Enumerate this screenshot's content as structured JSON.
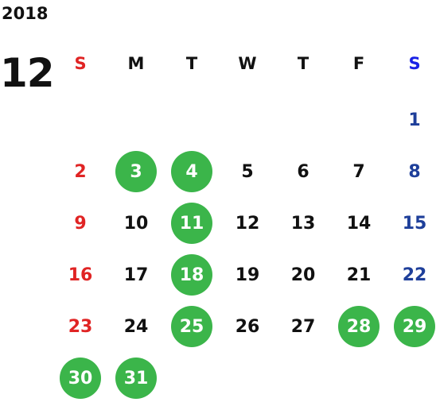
{
  "year": "2018",
  "month": "12",
  "colors": {
    "sunday": "#e02424",
    "saturday": "#1e3f9a",
    "saturday_header": "#1a22e6",
    "weekday": "#111111",
    "highlight_bg": "#3bb54a",
    "highlight_text": "#ffffff"
  },
  "weekdays": [
    "S",
    "M",
    "T",
    "W",
    "T",
    "F",
    "S"
  ],
  "weeks": [
    [
      null,
      null,
      null,
      null,
      null,
      null,
      "1"
    ],
    [
      "2",
      "3",
      "4",
      "5",
      "6",
      "7",
      "8"
    ],
    [
      "9",
      "10",
      "11",
      "12",
      "13",
      "14",
      "15"
    ],
    [
      "16",
      "17",
      "18",
      "19",
      "20",
      "21",
      "22"
    ],
    [
      "23",
      "24",
      "25",
      "26",
      "27",
      "28",
      "29"
    ],
    [
      "30",
      "31",
      null,
      null,
      null,
      null,
      null
    ]
  ],
  "highlighted_days": [
    "3",
    "4",
    "11",
    "18",
    "25",
    "28",
    "29",
    "30",
    "31"
  ]
}
